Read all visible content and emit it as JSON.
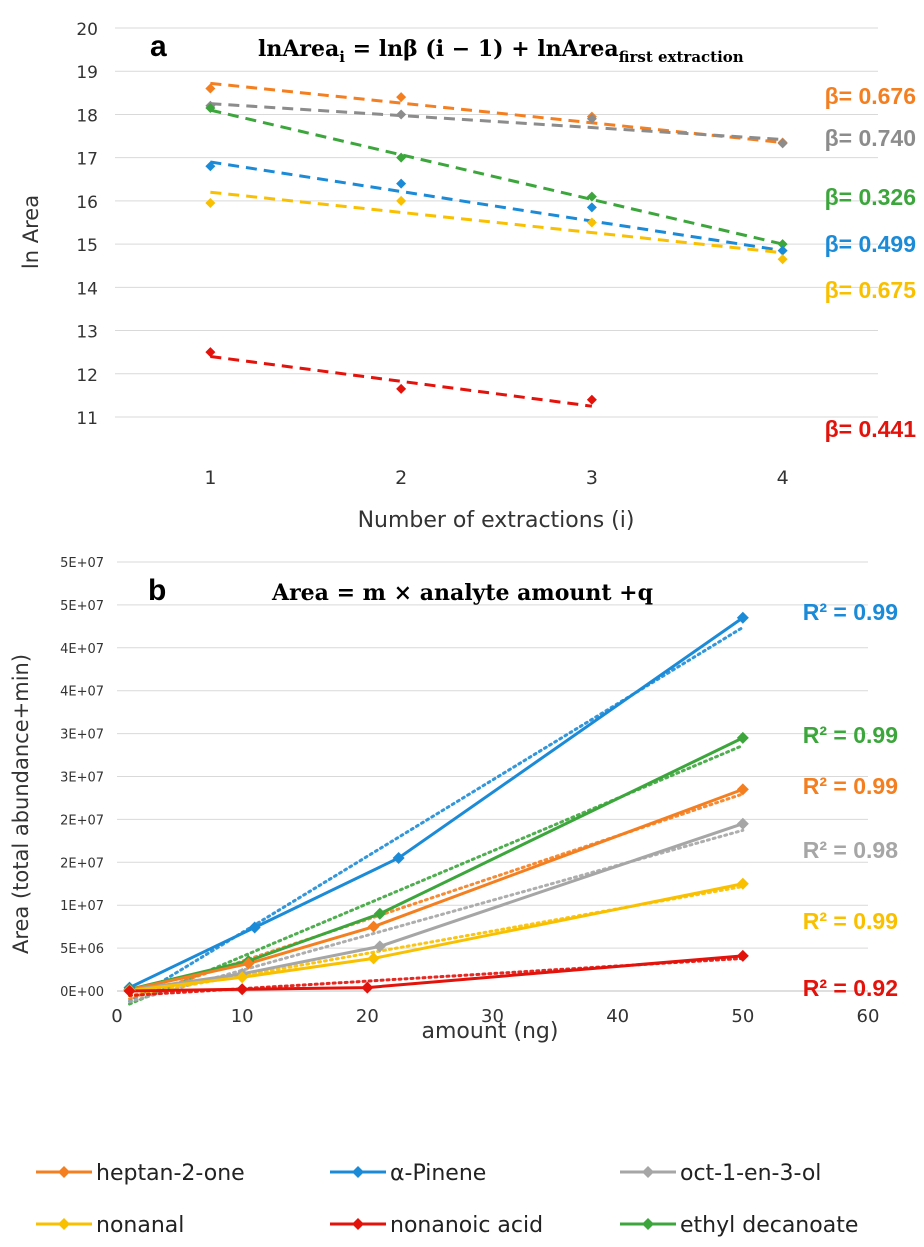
{
  "chart_data": [
    {
      "type": "scatter",
      "panel_label": "a",
      "equation": {
        "pre": "lnArea",
        "pre_sub": "i",
        "mid": " = lnβ (i − 1) + lnArea",
        "post_sub": "first extraction"
      },
      "xlabel": "Number of extractions (i)",
      "ylabel": "ln Area",
      "xlim": [
        0.5,
        4.5
      ],
      "ylim": [
        11,
        20
      ],
      "x_ticks": [
        "1",
        "2",
        "3",
        "4"
      ],
      "y_ticks": [
        "11",
        "12",
        "13",
        "14",
        "15",
        "16",
        "17",
        "18",
        "19",
        "20"
      ],
      "grid": "horizontal",
      "series": [
        {
          "color": "#F47F20",
          "x": [
            1,
            2,
            3,
            4
          ],
          "values": [
            18.6,
            18.4,
            17.95,
            17.35
          ],
          "fit": [
            18.72,
            17.35
          ],
          "annotation": "β= 0.676"
        },
        {
          "color": "#8C8C8C",
          "x": [
            1,
            2,
            3,
            4
          ],
          "values": [
            18.2,
            18.0,
            17.9,
            17.33
          ],
          "fit": [
            18.25,
            17.42
          ],
          "annotation": "β= 0.740"
        },
        {
          "color": "#3CA63C",
          "x": [
            1,
            2,
            3,
            4
          ],
          "values": [
            18.15,
            17.0,
            16.1,
            15.0
          ],
          "fit": [
            18.1,
            15.0
          ],
          "annotation": "β= 0.326"
        },
        {
          "color": "#1B8BD8",
          "x": [
            1,
            2,
            3,
            4
          ],
          "values": [
            16.8,
            16.4,
            15.85,
            14.85
          ],
          "fit": [
            16.9,
            14.85
          ],
          "annotation": "β= 0.499"
        },
        {
          "color": "#F9C000",
          "x": [
            1,
            2,
            3,
            4
          ],
          "values": [
            15.95,
            16.0,
            15.5,
            14.65
          ],
          "fit": [
            16.2,
            14.8
          ],
          "annotation": "β= 0.675"
        },
        {
          "color": "#E3120B",
          "x": [
            1,
            2,
            3
          ],
          "values": [
            12.5,
            11.65,
            11.4
          ],
          "fit": [
            12.4,
            11.25
          ],
          "annotation": "β= 0.441"
        }
      ]
    },
    {
      "type": "line",
      "panel_label": "b",
      "equation": "Area = m × analyte amount +q",
      "xlabel": "amount (ng)",
      "ylabel": "Area (total abundance+min)",
      "xlim": [
        0,
        60
      ],
      "ylim": [
        0,
        50000000
      ],
      "x_ticks": [
        "0",
        "10",
        "20",
        "30",
        "40",
        "50",
        "60"
      ],
      "y_ticks": [
        "0E+00",
        "5E+06",
        "1E+07",
        "2E+07",
        "2E+07",
        "3E+07",
        "3E+07",
        "4E+07",
        "4E+07",
        "5E+07",
        "5E+07"
      ],
      "grid": "horizontal",
      "series": [
        {
          "name": "α-Pinene",
          "color": "#1B8BD8",
          "x": [
            1,
            11,
            22.5,
            50
          ],
          "values": [
            400000,
            7400000,
            15500000,
            43500000
          ],
          "annotation": "R² = 0.99"
        },
        {
          "name": "ethyl decanoate",
          "color": "#3CA63C",
          "x": [
            1,
            10.5,
            21,
            50
          ],
          "values": [
            200000,
            3500000,
            9000000,
            29500000
          ],
          "annotation": "R² = 0.99"
        },
        {
          "name": "heptan-2-one",
          "color": "#F47F20",
          "x": [
            1,
            10.5,
            20.5,
            50
          ],
          "values": [
            150000,
            3200000,
            7500000,
            23500000
          ],
          "annotation": "R² = 0.99"
        },
        {
          "name": "oct-1-en-3-ol",
          "color": "#A6A6A6",
          "x": [
            1,
            10,
            21,
            50
          ],
          "values": [
            100000,
            2000000,
            5200000,
            19500000
          ],
          "annotation": "R² = 0.98"
        },
        {
          "name": "nonanal",
          "color": "#F9C000",
          "x": [
            1,
            10,
            20.5,
            50
          ],
          "values": [
            50000,
            1600000,
            3800000,
            12500000
          ],
          "annotation": "R² = 0.99"
        },
        {
          "name": "nonanoic acid",
          "color": "#E3120B",
          "x": [
            1,
            10,
            20,
            50
          ],
          "values": [
            0,
            200000,
            400000,
            4100000
          ],
          "annotation": "R² = 0.92"
        }
      ]
    }
  ],
  "legend": [
    {
      "label": "heptan-2-one",
      "color": "#F47F20"
    },
    {
      "label": "α-Pinene",
      "color": "#1B8BD8"
    },
    {
      "label": "oct-1-en-3-ol",
      "color": "#A6A6A6"
    },
    {
      "label": "nonanal",
      "color": "#F9C000"
    },
    {
      "label": "nonanoic acid",
      "color": "#E3120B"
    },
    {
      "label": "ethyl decanoate",
      "color": "#3CA63C"
    }
  ]
}
